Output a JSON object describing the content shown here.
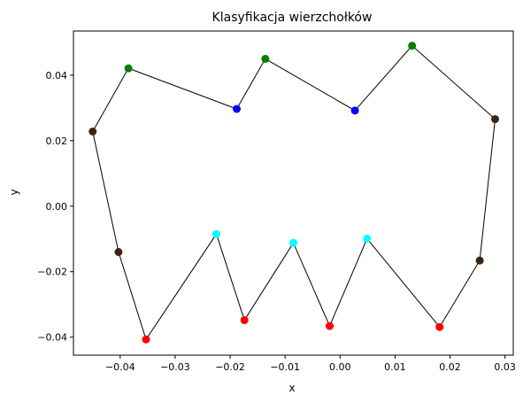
{
  "chart_data": {
    "type": "scatter",
    "title": "Klasyfikacja wierzchołków",
    "xlabel": "x",
    "ylabel": "y",
    "xlim": [
      -0.0485,
      0.0315
    ],
    "ylim": [
      -0.0455,
      0.0535
    ],
    "grid": false,
    "x_ticks": [
      -0.04,
      -0.03,
      -0.02,
      -0.01,
      0.0,
      0.01,
      0.02,
      0.03
    ],
    "x_tick_labels": [
      "−0.04",
      "−0.03",
      "−0.02",
      "−0.01",
      "0.00",
      "0.01",
      "0.02",
      "0.03"
    ],
    "y_ticks": [
      -0.04,
      -0.02,
      0.0,
      0.02,
      0.04
    ],
    "y_tick_labels": [
      "−0.04",
      "−0.02",
      "0.00",
      "0.02",
      "0.04"
    ],
    "polygon_color": "#000000",
    "point_classes": {
      "green": "#008000",
      "blue": "#0000ff",
      "brown": "#3d2412",
      "red": "#ff0000",
      "cyan": "#00ffff"
    },
    "vertices": [
      {
        "x": -0.0385,
        "y": 0.0421,
        "class": "green"
      },
      {
        "x": -0.0188,
        "y": 0.0297,
        "class": "blue"
      },
      {
        "x": -0.0136,
        "y": 0.045,
        "class": "green"
      },
      {
        "x": 0.0027,
        "y": 0.0292,
        "class": "blue"
      },
      {
        "x": 0.0131,
        "y": 0.049,
        "class": "green"
      },
      {
        "x": 0.0282,
        "y": 0.0266,
        "class": "brown"
      },
      {
        "x": 0.0254,
        "y": -0.0166,
        "class": "brown"
      },
      {
        "x": 0.0181,
        "y": -0.0369,
        "class": "red"
      },
      {
        "x": 0.0049,
        "y": -0.0099,
        "class": "cyan"
      },
      {
        "x": -0.0019,
        "y": -0.0366,
        "class": "red"
      },
      {
        "x": -0.0085,
        "y": -0.0112,
        "class": "cyan"
      },
      {
        "x": -0.0174,
        "y": -0.0348,
        "class": "red"
      },
      {
        "x": -0.0225,
        "y": -0.0085,
        "class": "cyan"
      },
      {
        "x": -0.0353,
        "y": -0.0407,
        "class": "red"
      },
      {
        "x": -0.0403,
        "y": -0.014,
        "class": "brown"
      },
      {
        "x": -0.045,
        "y": 0.0228,
        "class": "brown"
      }
    ]
  }
}
